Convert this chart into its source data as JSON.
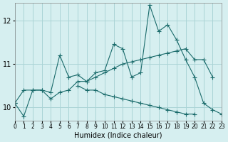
{
  "xlabel": "Humidex (Indice chaleur)",
  "ylabel": "",
  "background_color": "#d6eff0",
  "grid_color": "#aad4d6",
  "line_color": "#1a6b6b",
  "xlim": [
    0,
    23
  ],
  "ylim": [
    9.7,
    12.4
  ],
  "yticks": [
    10,
    11,
    12
  ],
  "xticks": [
    0,
    1,
    2,
    3,
    4,
    5,
    6,
    7,
    8,
    9,
    10,
    11,
    12,
    13,
    14,
    15,
    16,
    17,
    18,
    19,
    20,
    21,
    22,
    23
  ],
  "series": [
    [
      10.1,
      9.8,
      10.4,
      10.4,
      10.35,
      11.2,
      10.7,
      10.75,
      10.6,
      10.8,
      10.85,
      11.45,
      11.35,
      10.7,
      10.8,
      12.35,
      11.75,
      11.9,
      11.55,
      11.1,
      10.7,
      10.1,
      9.95,
      9.85
    ],
    [
      10.1,
      10.4,
      10.4,
      10.4,
      10.2,
      10.35,
      10.4,
      10.6,
      10.6,
      10.7,
      10.8,
      10.9,
      11.0,
      11.05,
      11.1,
      11.15,
      11.2,
      11.25,
      11.3,
      11.35,
      11.1,
      11.1,
      10.7,
      null
    ],
    [
      10.1,
      null,
      null,
      null,
      null,
      null,
      null,
      10.5,
      10.4,
      10.4,
      10.3,
      10.25,
      10.2,
      10.15,
      10.1,
      10.05,
      10.0,
      9.95,
      9.9,
      9.85,
      9.85,
      null,
      null,
      null
    ]
  ]
}
